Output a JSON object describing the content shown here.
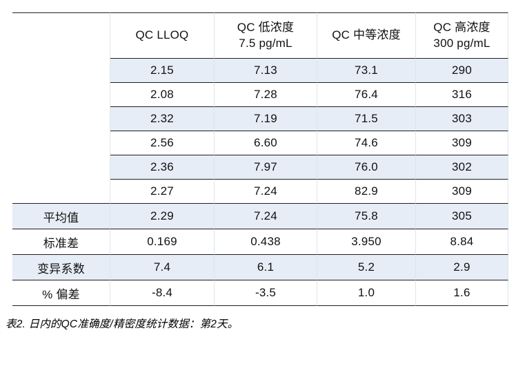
{
  "colors": {
    "row_shade": "#e6edf6",
    "line_color": "#1f1f1f",
    "grid_color": "#dfe4ea"
  },
  "caption": "表2. 日内的QC准确度/精密度统计数据：第2天。",
  "table": {
    "columns": [
      {
        "label": "",
        "sublabel": ""
      },
      {
        "label": "QC LLOQ",
        "sublabel": ""
      },
      {
        "label": "QC 低浓度",
        "sublabel": "7.5 pg/mL"
      },
      {
        "label": "QC 中等浓度",
        "sublabel": ""
      },
      {
        "label": "QC 高浓度",
        "sublabel": "300 pg/mL"
      }
    ],
    "replicate_rows": [
      [
        "2.15",
        "7.13",
        "73.1",
        "290"
      ],
      [
        "2.08",
        "7.28",
        "76.4",
        "316"
      ],
      [
        "2.32",
        "7.19",
        "71.5",
        "303"
      ],
      [
        "2.56",
        "6.60",
        "74.6",
        "309"
      ],
      [
        "2.36",
        "7.97",
        "76.0",
        "302"
      ],
      [
        "2.27",
        "7.24",
        "82.9",
        "309"
      ]
    ],
    "summary_rows": [
      {
        "label": "平均值",
        "values": [
          "2.29",
          "7.24",
          "75.8",
          "305"
        ]
      },
      {
        "label": "标准差",
        "values": [
          "0.169",
          "0.438",
          "3.950",
          "8.84"
        ]
      },
      {
        "label": "变异系数",
        "values": [
          "7.4",
          "6.1",
          "5.2",
          "2.9"
        ]
      },
      {
        "label": "% 偏差",
        "values": [
          "-8.4",
          "-3.5",
          "1.0",
          "1.6"
        ]
      }
    ]
  }
}
